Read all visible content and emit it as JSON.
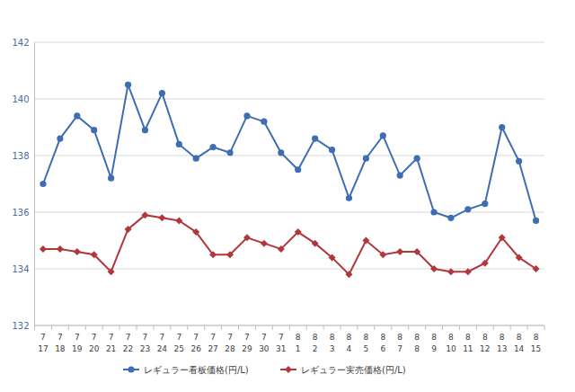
{
  "chart_data": {
    "type": "line",
    "categories": [
      "7\n17",
      "7\n18",
      "7\n19",
      "7\n20",
      "7\n21",
      "7\n22",
      "7\n23",
      "7\n24",
      "7\n25",
      "7\n26",
      "7\n27",
      "7\n28",
      "7\n29",
      "7\n30",
      "7\n31",
      "8\n1",
      "8\n2",
      "8\n3",
      "8\n4",
      "8\n5",
      "8\n6",
      "8\n7",
      "8\n8",
      "8\n9",
      "8\n10",
      "8\n11",
      "8\n12",
      "8\n13",
      "8\n14",
      "8\n15"
    ],
    "series": [
      {
        "name": "レギュラー看板価格(円/L)",
        "color": "#3f6db3",
        "marker": "circle",
        "values": [
          137.0,
          138.6,
          139.4,
          138.9,
          137.2,
          140.5,
          138.9,
          140.2,
          138.4,
          137.9,
          138.3,
          138.1,
          139.4,
          139.2,
          138.1,
          137.5,
          138.6,
          138.2,
          136.5,
          137.9,
          138.7,
          137.3,
          137.9,
          136.0,
          135.8,
          136.1,
          136.3,
          139.0,
          137.8,
          135.7
        ]
      },
      {
        "name": "レギュラー実売価格(円/L)",
        "color": "#b0373a",
        "marker": "diamond",
        "values": [
          134.7,
          134.7,
          134.6,
          134.5,
          133.9,
          135.4,
          135.9,
          135.8,
          135.7,
          135.3,
          134.5,
          134.5,
          135.1,
          134.9,
          134.7,
          135.3,
          134.9,
          134.4,
          133.8,
          135.0,
          134.5,
          134.6,
          134.6,
          134.0,
          133.9,
          133.9,
          134.2,
          135.1,
          134.4,
          134.0
        ]
      }
    ],
    "ylim": [
      132,
      142
    ],
    "yticks": [
      132,
      134,
      136,
      138,
      140,
      142
    ],
    "grid": true,
    "legend": "bottom"
  }
}
